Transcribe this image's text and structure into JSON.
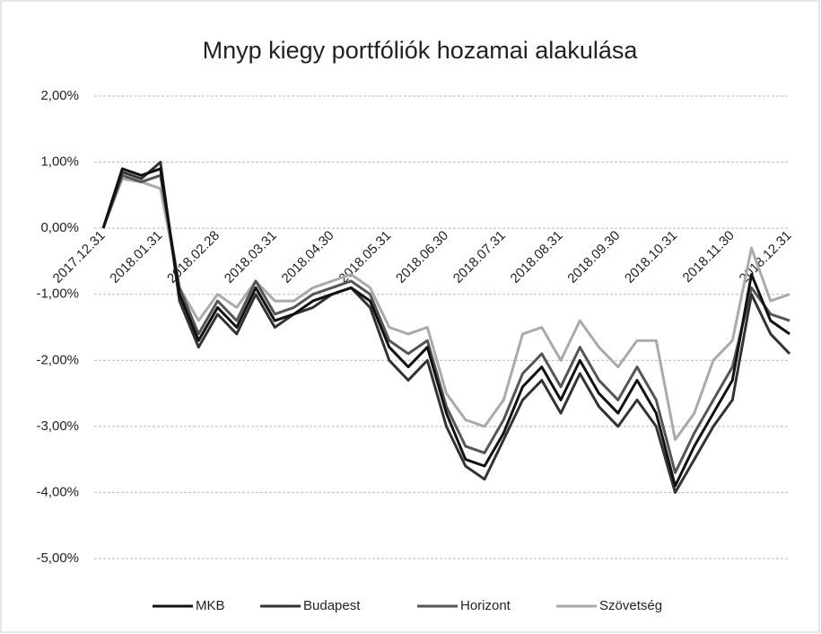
{
  "chart_data": {
    "type": "line",
    "title": "Mnyp kiegy portfóliók hozamai alakulása",
    "categories": [
      "2017.12.31",
      null,
      null,
      "2018.01.31",
      null,
      null,
      "2018.02.28",
      null,
      null,
      "2018.03.31",
      null,
      null,
      "2018.04.30",
      null,
      null,
      "2018.05.31",
      null,
      null,
      "2018.06.30",
      null,
      null,
      "2018.07.31",
      null,
      null,
      "2018.08.31",
      null,
      null,
      "2018.09.30",
      null,
      null,
      "2018.10.31",
      null,
      null,
      "2018.11.30",
      null,
      null,
      "2018.12.31"
    ],
    "series": [
      {
        "name": "MKB",
        "color": "#111111",
        "values": [
          0,
          0.9,
          0.8,
          0.9,
          -1.0,
          -1.7,
          -1.2,
          -1.5,
          -0.9,
          -1.4,
          -1.3,
          -1.1,
          -1.0,
          -0.9,
          -1.1,
          -1.8,
          -2.1,
          -1.8,
          -2.8,
          -3.5,
          -3.6,
          -3.1,
          -2.4,
          -2.1,
          -2.6,
          -2.0,
          -2.5,
          -2.8,
          -2.3,
          -2.8,
          -3.9,
          -3.3,
          -2.8,
          -2.3,
          -0.7,
          -1.4,
          -1.6
        ]
      },
      {
        "name": "Budapest",
        "color": "#333333",
        "values": [
          0,
          0.85,
          0.75,
          1.0,
          -1.1,
          -1.8,
          -1.3,
          -1.6,
          -1.0,
          -1.5,
          -1.3,
          -1.2,
          -1.0,
          -0.9,
          -1.2,
          -2.0,
          -2.3,
          -2.0,
          -3.0,
          -3.6,
          -3.8,
          -3.2,
          -2.6,
          -2.3,
          -2.8,
          -2.2,
          -2.7,
          -3.0,
          -2.6,
          -3.0,
          -4.0,
          -3.5,
          -3.0,
          -2.6,
          -1.0,
          -1.6,
          -1.9
        ]
      },
      {
        "name": "Horizont",
        "color": "#555555",
        "values": [
          0,
          0.8,
          0.7,
          0.8,
          -0.9,
          -1.6,
          -1.1,
          -1.4,
          -0.8,
          -1.3,
          -1.2,
          -1.0,
          -0.9,
          -0.8,
          -1.0,
          -1.7,
          -1.9,
          -1.7,
          -2.7,
          -3.3,
          -3.4,
          -2.9,
          -2.2,
          -1.9,
          -2.4,
          -1.8,
          -2.3,
          -2.6,
          -2.1,
          -2.6,
          -3.7,
          -3.1,
          -2.6,
          -2.1,
          -0.9,
          -1.3,
          -1.4
        ]
      },
      {
        "name": "Szövetség",
        "color": "#aaaaaa",
        "values": [
          0,
          0.75,
          0.7,
          0.6,
          -0.9,
          -1.4,
          -1.0,
          -1.2,
          -0.8,
          -1.1,
          -1.1,
          -0.9,
          -0.8,
          -0.7,
          -0.9,
          -1.5,
          -1.6,
          -1.5,
          -2.5,
          -2.9,
          -3.0,
          -2.6,
          -1.6,
          -1.5,
          -2.0,
          -1.4,
          -1.8,
          -2.1,
          -1.7,
          -1.7,
          -3.2,
          -2.8,
          -2.0,
          -1.7,
          -0.3,
          -1.1,
          -1.0
        ]
      }
    ],
    "ylim": [
      -5,
      2
    ],
    "yticks": [
      {
        "value": -5,
        "label": "-5,00%"
      },
      {
        "value": -4,
        "label": "-4,00%"
      },
      {
        "value": -3,
        "label": "-3,00%"
      },
      {
        "value": -2,
        "label": "-2,00%"
      },
      {
        "value": -1,
        "label": "-1,00%"
      },
      {
        "value": 0,
        "label": "0,00%"
      },
      {
        "value": 1,
        "label": "1,00%"
      },
      {
        "value": 2,
        "label": "2,00%"
      }
    ],
    "grid": true
  }
}
